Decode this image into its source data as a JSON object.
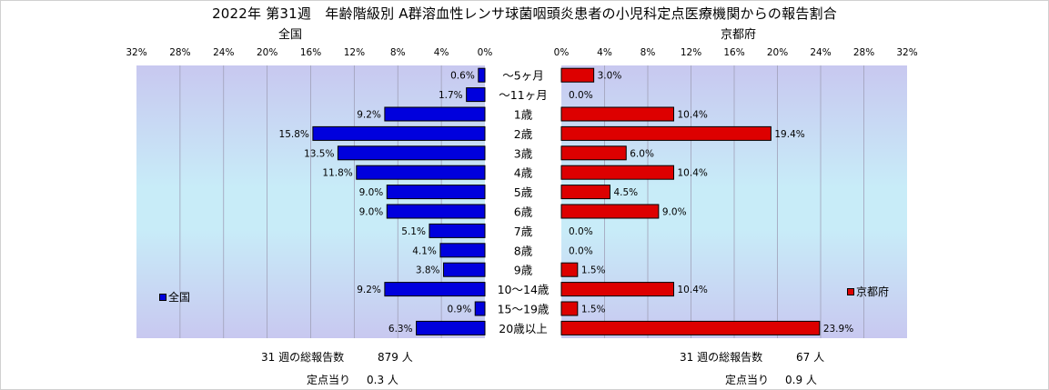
{
  "title": "2022年 第31週　年齢階級別 A群溶血性レンサ球菌咽頭炎患者の小児科定点医療機関からの報告割合",
  "colors": {
    "national": "#0000dd",
    "kyoto": "#dd0000"
  },
  "chart_data": [
    {
      "type": "bar",
      "orientation": "horizontal",
      "direction": "leftward",
      "subtitle": "全国",
      "categories": [
        "～5ヶ月",
        "～11ヶ月",
        "1歳",
        "2歳",
        "3歳",
        "4歳",
        "5歳",
        "6歳",
        "7歳",
        "8歳",
        "9歳",
        "10～14歳",
        "15～19歳",
        "20歳以上"
      ],
      "series": [
        {
          "name": "全国",
          "values": [
            0.6,
            1.7,
            9.2,
            15.8,
            13.5,
            11.8,
            9.0,
            9.0,
            5.1,
            4.1,
            3.8,
            9.2,
            0.9,
            6.3
          ]
        }
      ],
      "xlim": [
        0,
        32
      ],
      "xticks": [
        32,
        28,
        24,
        20,
        16,
        12,
        8,
        4,
        0
      ],
      "tick_suffix": "%",
      "data_labels": [
        "0.6%",
        "1.7%",
        "9.2%",
        "15.8%",
        "13.5%",
        "11.8%",
        "9.0%",
        "9.0%",
        "5.1%",
        "4.1%",
        "3.8%",
        "9.2%",
        "0.9%",
        "6.3%"
      ],
      "grid": true,
      "legend": "bottom-left"
    },
    {
      "type": "bar",
      "orientation": "horizontal",
      "direction": "rightward",
      "subtitle": "京都府",
      "categories": [
        "～5ヶ月",
        "～11ヶ月",
        "1歳",
        "2歳",
        "3歳",
        "4歳",
        "5歳",
        "6歳",
        "7歳",
        "8歳",
        "9歳",
        "10～14歳",
        "15～19歳",
        "20歳以上"
      ],
      "series": [
        {
          "name": "京都府",
          "values": [
            3.0,
            0.0,
            10.4,
            19.4,
            6.0,
            10.4,
            4.5,
            9.0,
            0.0,
            0.0,
            1.5,
            10.4,
            1.5,
            23.9
          ]
        }
      ],
      "xlim": [
        0,
        32
      ],
      "xticks": [
        0,
        4,
        8,
        12,
        16,
        20,
        24,
        28,
        32
      ],
      "tick_suffix": "%",
      "data_labels": [
        "3.0%",
        "0.0%",
        "10.4%",
        "19.4%",
        "6.0%",
        "10.4%",
        "4.5%",
        "9.0%",
        "0.0%",
        "0.0%",
        "1.5%",
        "10.4%",
        "1.5%",
        "23.9%"
      ],
      "grid": true,
      "legend": "bottom-right"
    }
  ],
  "footer": {
    "left": {
      "total_label": "31 週の総報告数",
      "total_value": "879 人",
      "per_label": "定点当り",
      "per_value": "0.3 人"
    },
    "right": {
      "total_label": "31 週の総報告数",
      "total_value": "67 人",
      "per_label": "定点当り",
      "per_value": "0.9 人"
    }
  }
}
